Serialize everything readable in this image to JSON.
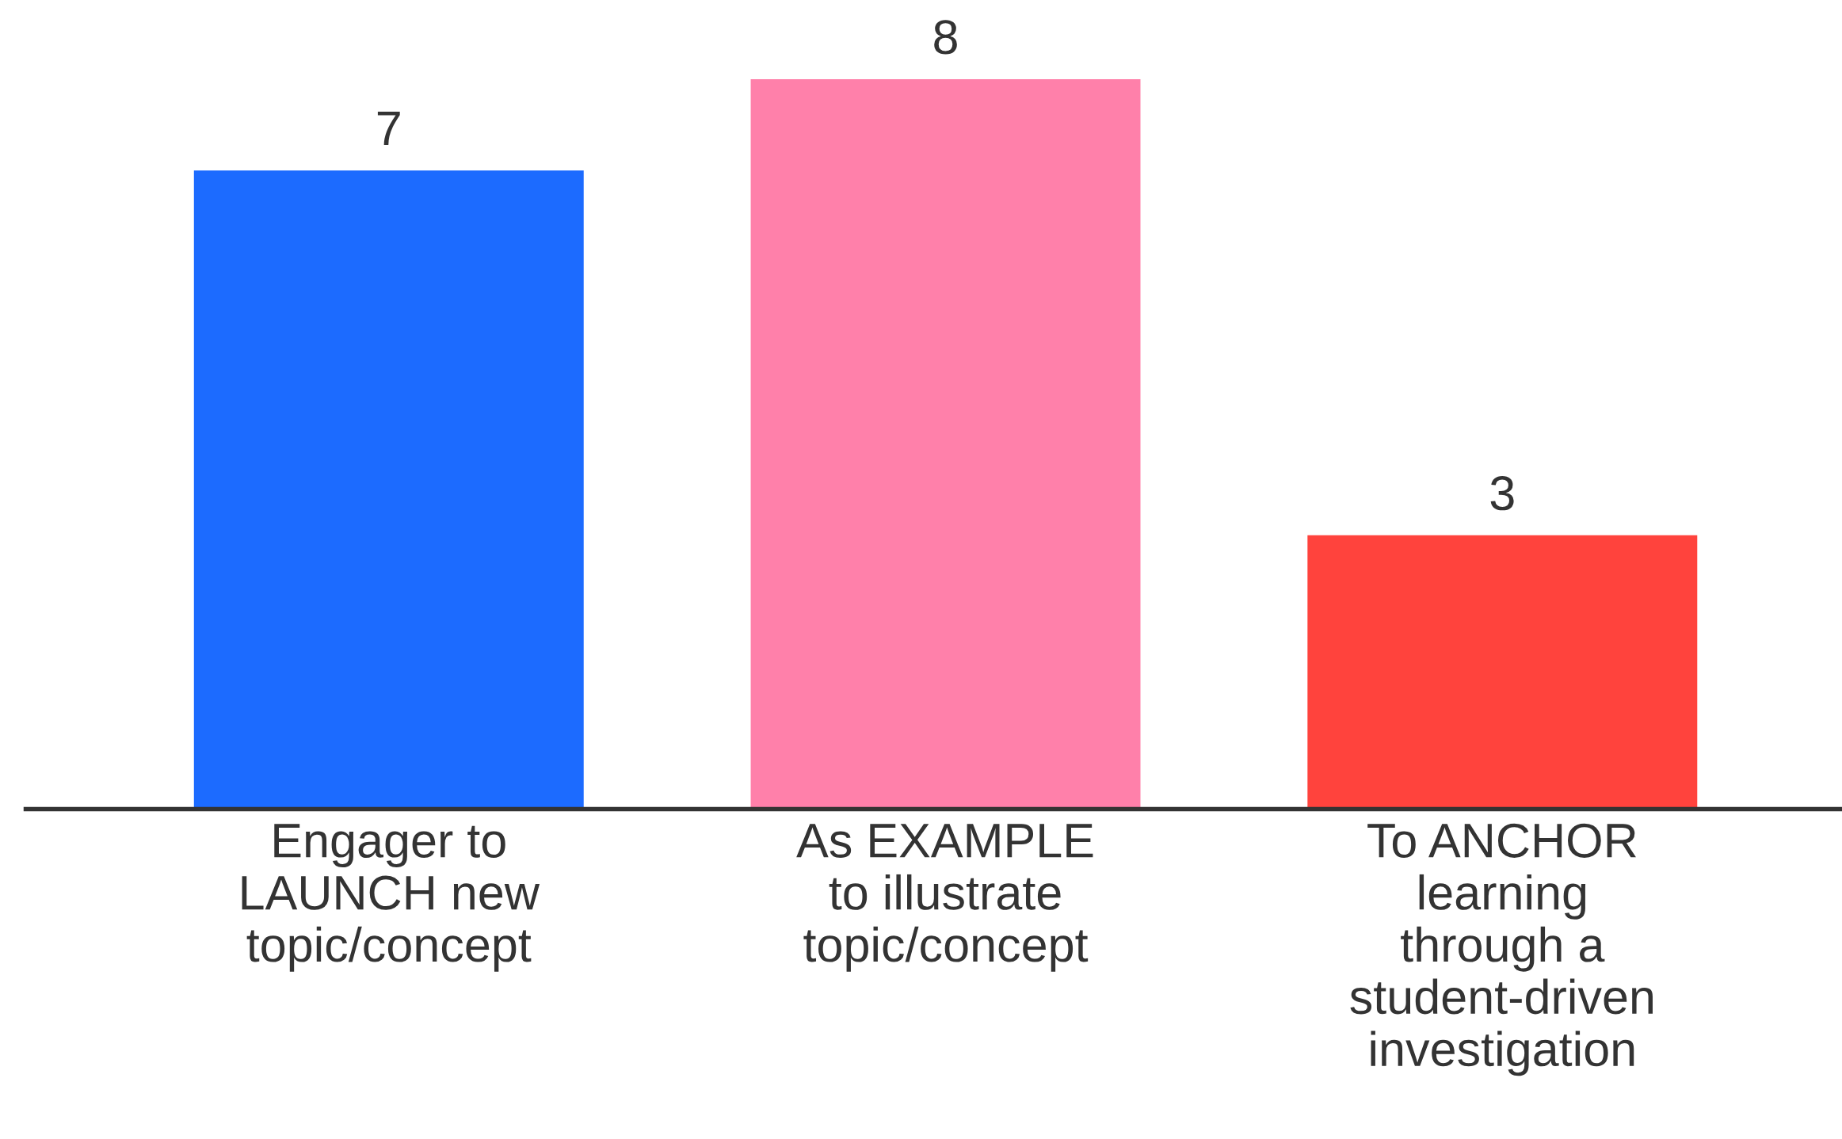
{
  "chart_data": {
    "type": "bar",
    "categories": [
      "Engager to\nLAUNCH new\ntopic/concept",
      "As EXAMPLE\nto illustrate\ntopic/concept",
      "To ANCHOR\nlearning\nthrough a\nstudent-driven\ninvestigation"
    ],
    "values": [
      7,
      8,
      3
    ],
    "colors": [
      "#1c6bff",
      "#ff80aa",
      "#ff433d"
    ],
    "data_labels": true,
    "grid": false,
    "tick_labels": "x"
  }
}
